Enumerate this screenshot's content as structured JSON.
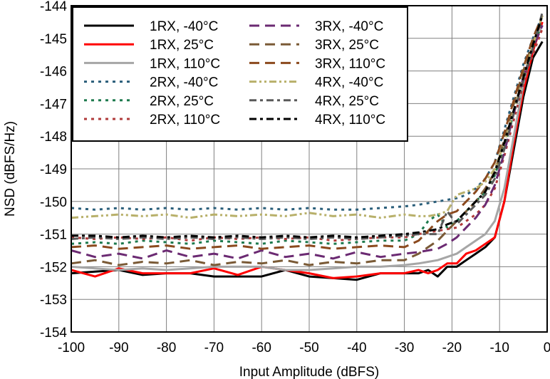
{
  "chart_data": {
    "type": "line",
    "title": "",
    "xlabel": "Input Amplitude (dBFS)",
    "ylabel": "NSD (dBFS/Hz)",
    "xlim": [
      -100,
      0
    ],
    "ylim": [
      -154,
      -144
    ],
    "xticks": [
      -100,
      -90,
      -80,
      -70,
      -60,
      -50,
      -40,
      -30,
      -20,
      -10,
      0
    ],
    "yticks": [
      -154,
      -153,
      -152,
      -151,
      -150,
      -149,
      -148,
      -147,
      -146,
      -145,
      -144
    ],
    "grid": true,
    "legend_position": "top-left",
    "legend_columns": 2,
    "series": [
      {
        "name": "1RX, -40°C",
        "color": "#000000",
        "dash": "solid",
        "x": [
          -100,
          -95,
          -90,
          -85,
          -80,
          -75,
          -70,
          -65,
          -60,
          -55,
          -50,
          -45,
          -40,
          -35,
          -30,
          -27,
          -25,
          -23,
          -21,
          -19,
          -17,
          -15,
          -13,
          -11,
          -9,
          -7,
          -5,
          -3,
          -1
        ],
        "y": [
          -152.2,
          -152.15,
          -152.1,
          -152.25,
          -152.2,
          -152.2,
          -152.3,
          -152.3,
          -152.3,
          -152.1,
          -152.3,
          -152.35,
          -152.4,
          -152.2,
          -152.2,
          -152.2,
          -152.1,
          -152.3,
          -152.0,
          -152.0,
          -151.8,
          -151.6,
          -151.4,
          -151.1,
          -150.0,
          -148.4,
          -146.8,
          -145.6,
          -145.1
        ]
      },
      {
        "name": "1RX, 25°C",
        "color": "#ff0000",
        "dash": "solid",
        "x": [
          -100,
          -95,
          -90,
          -85,
          -80,
          -75,
          -70,
          -65,
          -60,
          -55,
          -50,
          -45,
          -40,
          -35,
          -30,
          -27,
          -25,
          -23,
          -21,
          -19,
          -17,
          -15,
          -13,
          -11,
          -9,
          -7,
          -5,
          -3,
          -1
        ],
        "y": [
          -152.1,
          -152.3,
          -152.05,
          -152.2,
          -152.2,
          -152.2,
          -152.05,
          -152.25,
          -152.0,
          -152.1,
          -152.2,
          -152.35,
          -152.3,
          -152.2,
          -152.2,
          -152.1,
          -152.2,
          -152.1,
          -151.9,
          -151.9,
          -151.6,
          -151.5,
          -151.3,
          -151.1,
          -150.0,
          -148.2,
          -146.6,
          -145.4,
          -144.5
        ]
      },
      {
        "name": "1RX, 110°C",
        "color": "#a6a6a6",
        "dash": "solid",
        "x": [
          -100,
          -95,
          -90,
          -85,
          -80,
          -75,
          -70,
          -65,
          -60,
          -55,
          -50,
          -45,
          -40,
          -35,
          -30,
          -27,
          -25,
          -23,
          -21,
          -19,
          -17,
          -15,
          -13,
          -11,
          -9,
          -7,
          -5,
          -3,
          -1
        ],
        "y": [
          -152.0,
          -152.05,
          -152.1,
          -152.05,
          -152.1,
          -152.05,
          -152.0,
          -152.0,
          -152.0,
          -152.1,
          -152.1,
          -152.05,
          -152.0,
          -152.0,
          -151.95,
          -151.9,
          -151.85,
          -151.8,
          -151.7,
          -151.6,
          -151.4,
          -151.2,
          -151.0,
          -150.6,
          -149.6,
          -148.0,
          -146.4,
          -145.2,
          -144.6
        ]
      },
      {
        "name": "2RX, -40°C",
        "color": "#2a5e7a",
        "dash": "dot",
        "x": [
          -100,
          -95,
          -90,
          -85,
          -80,
          -75,
          -70,
          -65,
          -60,
          -55,
          -50,
          -45,
          -40,
          -35,
          -30,
          -27,
          -25,
          -23,
          -21,
          -19,
          -17,
          -15,
          -13,
          -11,
          -9,
          -7,
          -5,
          -3,
          -1
        ],
        "y": [
          -150.2,
          -150.25,
          -150.2,
          -150.25,
          -150.2,
          -150.25,
          -150.2,
          -150.25,
          -150.2,
          -150.25,
          -150.2,
          -150.25,
          -150.25,
          -150.2,
          -150.15,
          -150.1,
          -150.05,
          -150.0,
          -149.95,
          -149.9,
          -149.8,
          -149.6,
          -149.3,
          -148.8,
          -147.8,
          -146.8,
          -145.8,
          -145.0,
          -144.3
        ]
      },
      {
        "name": "2RX, 25°C",
        "color": "#1e7a4e",
        "dash": "dot",
        "x": [
          -100,
          -95,
          -90,
          -85,
          -80,
          -75,
          -70,
          -65,
          -60,
          -55,
          -50,
          -45,
          -40,
          -35,
          -30,
          -27,
          -25,
          -23,
          -21,
          -19,
          -17,
          -15,
          -13,
          -11,
          -9,
          -7,
          -5,
          -3,
          -1
        ],
        "y": [
          -151.3,
          -151.25,
          -151.3,
          -151.2,
          -151.25,
          -151.3,
          -151.2,
          -151.25,
          -151.3,
          -151.2,
          -151.25,
          -151.3,
          -151.25,
          -151.2,
          -151.2,
          -151.0,
          -150.6,
          -150.4,
          -150.8,
          -150.6,
          -150.3,
          -150.0,
          -149.7,
          -149.2,
          -148.3,
          -147.3,
          -146.2,
          -145.3,
          -144.5
        ]
      },
      {
        "name": "2RX, 110°C",
        "color": "#b03a3a",
        "dash": "dot",
        "x": [
          -100,
          -95,
          -90,
          -85,
          -80,
          -75,
          -70,
          -65,
          -60,
          -55,
          -50,
          -45,
          -40,
          -35,
          -30,
          -27,
          -25,
          -23,
          -21,
          -19,
          -17,
          -15,
          -13,
          -11,
          -9,
          -7,
          -5,
          -3,
          -1
        ],
        "y": [
          -151.1,
          -151.15,
          -151.1,
          -151.15,
          -151.1,
          -151.2,
          -151.1,
          -151.15,
          -151.1,
          -151.15,
          -151.1,
          -151.2,
          -151.15,
          -151.1,
          -151.1,
          -151.0,
          -150.95,
          -150.9,
          -150.85,
          -150.8,
          -150.6,
          -150.4,
          -150.1,
          -149.6,
          -148.6,
          -147.5,
          -146.4,
          -145.5,
          -144.7
        ]
      },
      {
        "name": "3RX, -40°C",
        "color": "#6b2a72",
        "dash": "dash",
        "x": [
          -100,
          -95,
          -90,
          -85,
          -80,
          -75,
          -70,
          -65,
          -60,
          -55,
          -50,
          -45,
          -40,
          -35,
          -30,
          -27,
          -25,
          -23,
          -21,
          -19,
          -17,
          -15,
          -13,
          -11,
          -9,
          -7,
          -5,
          -3,
          -1
        ],
        "y": [
          -151.5,
          -151.7,
          -151.6,
          -151.75,
          -151.5,
          -151.7,
          -151.6,
          -151.75,
          -151.5,
          -151.7,
          -151.6,
          -151.75,
          -151.55,
          -151.7,
          -151.6,
          -151.55,
          -151.5,
          -151.45,
          -151.3,
          -151.1,
          -150.8,
          -150.5,
          -150.1,
          -149.5,
          -148.5,
          -147.3,
          -146.2,
          -145.3,
          -144.6
        ]
      },
      {
        "name": "3RX, 25°C",
        "color": "#7a5a36",
        "dash": "dash",
        "x": [
          -100,
          -95,
          -90,
          -85,
          -80,
          -75,
          -70,
          -65,
          -60,
          -55,
          -50,
          -45,
          -40,
          -35,
          -30,
          -27,
          -25,
          -23,
          -21,
          -19,
          -17,
          -15,
          -13,
          -11,
          -9,
          -7,
          -5,
          -3,
          -1
        ],
        "y": [
          -151.9,
          -151.8,
          -151.95,
          -151.85,
          -151.9,
          -151.8,
          -151.95,
          -151.85,
          -151.9,
          -151.8,
          -151.95,
          -151.85,
          -151.9,
          -151.8,
          -151.8,
          -151.6,
          -151.4,
          -151.2,
          -150.9,
          -150.6,
          -150.3,
          -150.0,
          -149.6,
          -149.1,
          -148.1,
          -147.0,
          -146.0,
          -145.1,
          -144.4
        ]
      },
      {
        "name": "3RX, 110°C",
        "color": "#8b4a1e",
        "dash": "dash",
        "x": [
          -100,
          -95,
          -90,
          -85,
          -80,
          -75,
          -70,
          -65,
          -60,
          -55,
          -50,
          -45,
          -40,
          -35,
          -30,
          -27,
          -25,
          -23,
          -21,
          -19,
          -17,
          -15,
          -13,
          -11,
          -9,
          -7,
          -5,
          -3,
          -1
        ],
        "y": [
          -151.4,
          -151.35,
          -151.45,
          -151.4,
          -151.35,
          -151.45,
          -151.4,
          -151.35,
          -151.45,
          -151.4,
          -151.35,
          -151.45,
          -151.4,
          -151.35,
          -151.4,
          -151.2,
          -150.9,
          -150.6,
          -150.4,
          -150.3,
          -150.0,
          -149.7,
          -149.3,
          -148.8,
          -147.9,
          -146.9,
          -145.9,
          -145.0,
          -144.3
        ]
      },
      {
        "name": "4RX, -40°C",
        "color": "#b8b06a",
        "dash": "dashdotdot",
        "x": [
          -100,
          -95,
          -90,
          -85,
          -80,
          -75,
          -70,
          -65,
          -60,
          -55,
          -50,
          -45,
          -40,
          -35,
          -30,
          -27,
          -25,
          -23,
          -21,
          -19,
          -17,
          -15,
          -13,
          -11,
          -9,
          -7,
          -5,
          -3,
          -1
        ],
        "y": [
          -150.5,
          -150.45,
          -150.4,
          -150.45,
          -150.4,
          -150.5,
          -150.4,
          -150.45,
          -150.4,
          -150.45,
          -150.35,
          -150.45,
          -150.4,
          -150.5,
          -150.4,
          -150.45,
          -150.45,
          -150.4,
          -150.3,
          -149.8,
          -149.7,
          -149.6,
          -149.4,
          -149.0,
          -148.2,
          -147.2,
          -146.2,
          -145.2,
          -144.3
        ]
      },
      {
        "name": "4RX, 25°C",
        "color": "#5a5a5a",
        "dash": "dashdot",
        "x": [
          -100,
          -95,
          -90,
          -85,
          -80,
          -75,
          -70,
          -65,
          -60,
          -55,
          -50,
          -45,
          -40,
          -35,
          -30,
          -27,
          -25,
          -23,
          -21,
          -19,
          -17,
          -15,
          -13,
          -11,
          -9,
          -7,
          -5,
          -3,
          -1
        ],
        "y": [
          -151.15,
          -151.1,
          -151.15,
          -151.1,
          -151.15,
          -151.1,
          -151.15,
          -151.1,
          -151.15,
          -151.1,
          -151.15,
          -151.1,
          -151.15,
          -151.1,
          -151.05,
          -151.0,
          -151.0,
          -151.0,
          -150.3,
          -150.7,
          -150.4,
          -150.1,
          -149.8,
          -149.3,
          -148.4,
          -147.3,
          -146.3,
          -145.3,
          -144.2
        ]
      },
      {
        "name": "4RX, 110°C",
        "color": "#000000",
        "dash": "dashdot",
        "x": [
          -100,
          -95,
          -90,
          -85,
          -80,
          -75,
          -70,
          -65,
          -60,
          -55,
          -50,
          -45,
          -40,
          -35,
          -30,
          -27,
          -25,
          -23,
          -21,
          -19,
          -17,
          -15,
          -13,
          -11,
          -9,
          -7,
          -5,
          -3,
          -1
        ],
        "y": [
          -151.05,
          -151.05,
          -151.1,
          -151.05,
          -151.1,
          -151.05,
          -151.1,
          -151.05,
          -151.1,
          -151.05,
          -151.1,
          -151.05,
          -151.1,
          -151.05,
          -151.0,
          -150.95,
          -150.9,
          -150.85,
          -150.7,
          -150.6,
          -150.3,
          -150.0,
          -149.7,
          -149.1,
          -148.2,
          -147.2,
          -146.2,
          -145.2,
          -144.3
        ]
      }
    ]
  }
}
